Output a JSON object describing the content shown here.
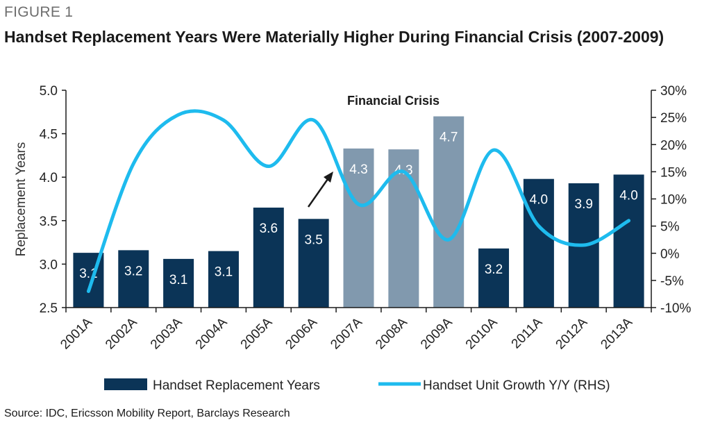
{
  "figure_label": "FIGURE 1",
  "title": "Handset Replacement Years Were Materially Higher During Financial Crisis (2007-2009)",
  "source": "Source: IDC, Ericsson Mobility Report, Barclays Research",
  "colors": {
    "bar_normal": "#0b3457",
    "bar_crisis": "#8199ae",
    "line": "#1ebbee",
    "axis": "#1a1a1a"
  },
  "chart_data": {
    "type": "bar",
    "categories": [
      "2001A",
      "2002A",
      "2003A",
      "2004A",
      "2005A",
      "2006A",
      "2007A",
      "2008A",
      "2009A",
      "2010A",
      "2011A",
      "2012A",
      "2013A"
    ],
    "series": [
      {
        "name": "Handset Replacement Years",
        "type": "bar",
        "axis": "left",
        "values": [
          3.13,
          3.16,
          3.06,
          3.15,
          3.65,
          3.52,
          4.33,
          4.32,
          4.7,
          3.18,
          3.98,
          3.93,
          4.03
        ],
        "labels": [
          "3.1",
          "3.2",
          "3.1",
          "3.1",
          "3.6",
          "3.5",
          "4.3",
          "4.3",
          "4.7",
          "3.2",
          "4.0",
          "3.9",
          "4.0"
        ],
        "crisis": [
          false,
          false,
          false,
          false,
          false,
          false,
          true,
          true,
          true,
          false,
          false,
          false,
          false
        ]
      },
      {
        "name": "Handset Unit Growth Y/Y (RHS)",
        "type": "line",
        "axis": "right",
        "values": [
          -7.0,
          16.5,
          25.5,
          24.5,
          16.0,
          24.5,
          9.0,
          15.0,
          2.5,
          19.0,
          5.0,
          1.5,
          6.0
        ]
      }
    ],
    "y_left": {
      "label": "Replacement Years",
      "min": 2.5,
      "max": 5.0,
      "ticks": [
        "2.5",
        "3.0",
        "3.5",
        "4.0",
        "4.5",
        "5.0"
      ]
    },
    "y_right": {
      "label": "",
      "min": -10,
      "max": 30,
      "ticks": [
        "-10%",
        "-5%",
        "0%",
        "5%",
        "10%",
        "15%",
        "20%",
        "25%",
        "30%"
      ]
    },
    "annotation": {
      "text": "Financial Crisis"
    },
    "legend_position": "bottom",
    "grid": false
  }
}
